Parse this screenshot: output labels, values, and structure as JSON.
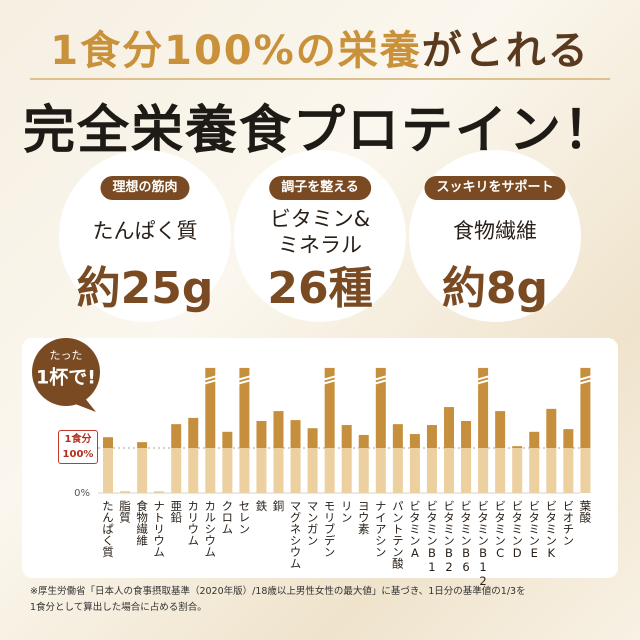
{
  "headline": {
    "part1": "1食分100%の栄養",
    "part2": "がとれる",
    "line2": "完全栄養食プロテイン！"
  },
  "features": [
    {
      "tag": "理想の筋肉",
      "name": "たんぱく質",
      "amount": "約25g"
    },
    {
      "tag": "調子を整える",
      "name": "ビタミン&\nミネラル",
      "amount": "26種"
    },
    {
      "tag": "スッキリをサポート",
      "name": "食物繊維",
      "amount": "約8g"
    }
  ],
  "badge": {
    "line1": "たった",
    "line2": "1杯で!"
  },
  "chart_data": {
    "type": "bar",
    "categories": [
      "たんぱく質",
      "脂質",
      "食物繊維",
      "ナトリウム",
      "亜鉛",
      "カリウム",
      "カルシウム",
      "クロム",
      "セレン",
      "鉄",
      "銅",
      "マグネシウム",
      "マンガン",
      "モリブデン",
      "リン",
      "ヨウ素",
      "ナイアシン",
      "パントテン酸",
      "ビタミンA",
      "ビタミンB1",
      "ビタミンB2",
      "ビタミンB6",
      "ビタミンB12",
      "ビタミンC",
      "ビタミンD",
      "ビタミンE",
      "ビタミンK",
      "ビオチン",
      "葉酸"
    ],
    "values": [
      124,
      4,
      113,
      4,
      153,
      167,
      278,
      136,
      278,
      160,
      182,
      162,
      144,
      278,
      151,
      129,
      278,
      153,
      131,
      151,
      191,
      160,
      278,
      182,
      104,
      136,
      187,
      142,
      278
    ],
    "color": "#c68f3e",
    "color_below_reference": "#ecd0a0",
    "axis_break": 265,
    "ylim": [
      0,
      280
    ],
    "yticks": [
      {
        "value": 0,
        "label": "0%"
      },
      {
        "value": 100,
        "label": "1食分\n100%"
      }
    ],
    "grid": true
  },
  "footnote": [
    "※厚生労働省「日本人の食事摂取基準（2020年版）/18歳以上男性女性の最大値」に基づき、1日分の基準値の1/3を",
    "1食分として算出した場合に占める割合。"
  ]
}
